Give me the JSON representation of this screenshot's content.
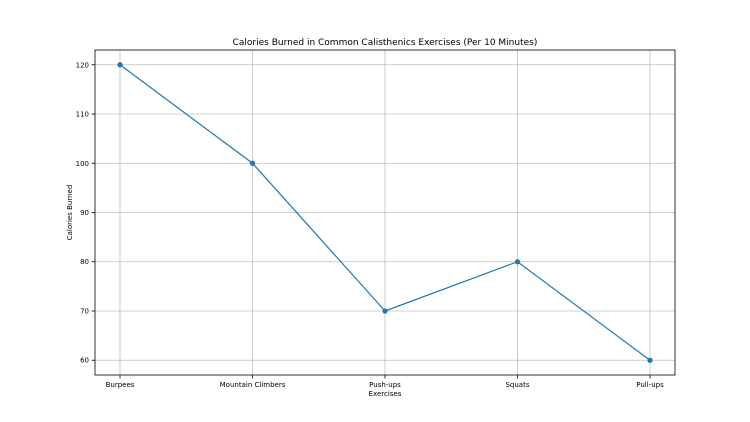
{
  "chart_data": {
    "type": "line",
    "title": "Calories Burned in Common Calisthenics Exercises (Per 10 Minutes)",
    "xlabel": "Exercises",
    "ylabel": "Calories Burned",
    "categories": [
      "Burpees",
      "Mountain Climbers",
      "Push-ups",
      "Squats",
      "Pull-ups"
    ],
    "series": [
      {
        "values": [
          120,
          100,
          70,
          80,
          60
        ],
        "color": "#1f77b4",
        "marker": "circle"
      }
    ],
    "yticks": [
      60,
      70,
      80,
      90,
      100,
      110,
      120
    ],
    "ylim": [
      57,
      123
    ],
    "grid": true
  }
}
